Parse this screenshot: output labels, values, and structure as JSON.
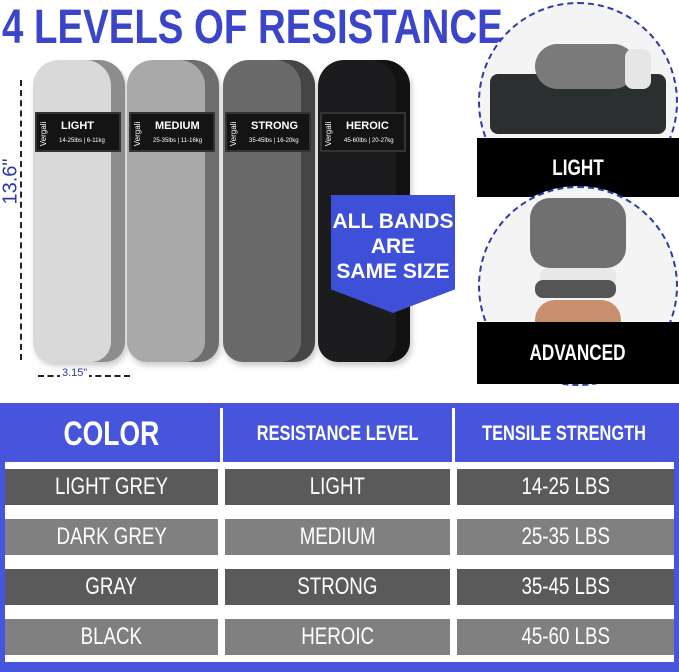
{
  "title": "4 LEVELS OF RESISTANCE",
  "bands": [
    {
      "brand": "Vergali",
      "name": "LIGHT",
      "spec": "14-25lbs | 6-11kg",
      "color": "#d9d9d9"
    },
    {
      "brand": "Vergali",
      "name": "MEDIUM",
      "spec": "25-35lbs | 11-16kg",
      "color": "#a9a9a9"
    },
    {
      "brand": "Vergali",
      "name": "STRONG",
      "spec": "35-45lbs | 16-20kg",
      "color": "#6a6a6a"
    },
    {
      "brand": "Vergali",
      "name": "HEROIC",
      "spec": "45-60lbs | 20-27kg",
      "color": "#1c1c1e"
    }
  ],
  "dimensions": {
    "length": "13.6\"",
    "width": "3.15\""
  },
  "sign": {
    "lines": [
      "ALL BANDS",
      "ARE",
      "SAME SIZE"
    ],
    "color": "#3f50d8"
  },
  "levels": {
    "light": "LIGHT",
    "advanced": "ADVANCED"
  },
  "table": {
    "headers": [
      "COLOR",
      "RESISTANCE LEVEL",
      "TENSILE STRENGTH"
    ],
    "rows": [
      [
        "LIGHT GREY",
        "LIGHT",
        "14-25 LBS"
      ],
      [
        "DARK GREY",
        "MEDIUM",
        "25-35 LBS"
      ],
      [
        "GRAY",
        "STRONG",
        "35-45 LBS"
      ],
      [
        "BLACK",
        "HEROIC",
        "45-60 LBS"
      ]
    ],
    "header_color": "#4655db",
    "row_colors": [
      "#5a5a5a",
      "#808080"
    ]
  }
}
